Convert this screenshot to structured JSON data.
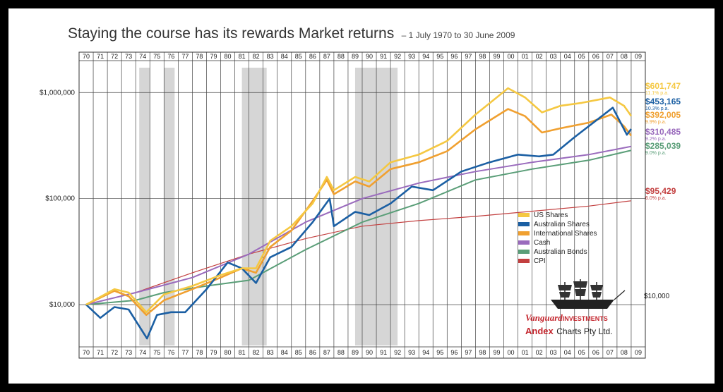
{
  "header": {
    "title": "Staying the course has its rewards Market returns",
    "subtitle": "– 1 July 1970 to 30 June 2009"
  },
  "chart_data": {
    "type": "line",
    "title": "Staying the course has its rewards Market returns",
    "subtitle": "– 1 July 1970 to 30 June 2009",
    "y_scale": "log",
    "ylim": [
      4000,
      2000000
    ],
    "y_ticks": [
      {
        "value": 10000,
        "label": "$10,000"
      },
      {
        "value": 100000,
        "label": "$100,000"
      },
      {
        "value": 1000000,
        "label": "$1,000,000"
      }
    ],
    "right_axis_label": "$10,000",
    "x_ticks": [
      "70",
      "71",
      "72",
      "73",
      "74",
      "75",
      "76",
      "77",
      "78",
      "79",
      "80",
      "81",
      "82",
      "83",
      "84",
      "85",
      "86",
      "87",
      "88",
      "89",
      "90",
      "91",
      "92",
      "93",
      "94",
      "95",
      "96",
      "97",
      "98",
      "99",
      "00",
      "01",
      "02",
      "03",
      "04",
      "05",
      "06",
      "07",
      "08",
      "09"
    ],
    "shaded_periods": [
      [
        1974.25,
        1975.0
      ],
      [
        1976.0,
        1976.75
      ],
      [
        1981.5,
        1983.25
      ],
      [
        1989.5,
        1992.5
      ]
    ],
    "grid": true,
    "legend_position": "bottom-right",
    "series": [
      {
        "name": "US Shares",
        "color": "#f5c842",
        "end_label": "$601,747",
        "return_label": "11.1% p.a.",
        "points": [
          [
            1970.5,
            10000
          ],
          [
            1972.5,
            14000
          ],
          [
            1973.5,
            13000
          ],
          [
            1974.75,
            8500
          ],
          [
            1976,
            12500
          ],
          [
            1978,
            15000
          ],
          [
            1980,
            19000
          ],
          [
            1981.5,
            22000
          ],
          [
            1982.5,
            22000
          ],
          [
            1983.5,
            40000
          ],
          [
            1985,
            55000
          ],
          [
            1986.5,
            90000
          ],
          [
            1987.5,
            160000
          ],
          [
            1988,
            120000
          ],
          [
            1989.5,
            160000
          ],
          [
            1990.5,
            145000
          ],
          [
            1992,
            220000
          ],
          [
            1994,
            260000
          ],
          [
            1996,
            350000
          ],
          [
            1998,
            620000
          ],
          [
            1999.5,
            900000
          ],
          [
            2000.3,
            1100000
          ],
          [
            2001.5,
            900000
          ],
          [
            2002.7,
            650000
          ],
          [
            2004,
            750000
          ],
          [
            2005.5,
            800000
          ],
          [
            2007.5,
            900000
          ],
          [
            2008.5,
            750000
          ],
          [
            2009,
            601747
          ]
        ]
      },
      {
        "name": "Australian Shares",
        "color": "#1b5fa3",
        "end_label": "$453,165",
        "return_label": "10.3% p.a.",
        "points": [
          [
            1970.5,
            10000
          ],
          [
            1971.5,
            7500
          ],
          [
            1972.5,
            9500
          ],
          [
            1973.5,
            9000
          ],
          [
            1974.8,
            4800
          ],
          [
            1975.5,
            8000
          ],
          [
            1976.5,
            8500
          ],
          [
            1977.5,
            8500
          ],
          [
            1979,
            14000
          ],
          [
            1980.5,
            25000
          ],
          [
            1981.5,
            22000
          ],
          [
            1982.5,
            16000
          ],
          [
            1983.5,
            28000
          ],
          [
            1985,
            35000
          ],
          [
            1986.5,
            60000
          ],
          [
            1987.7,
            100000
          ],
          [
            1988,
            55000
          ],
          [
            1989.5,
            75000
          ],
          [
            1990.5,
            70000
          ],
          [
            1992,
            90000
          ],
          [
            1993.5,
            130000
          ],
          [
            1995,
            120000
          ],
          [
            1997,
            180000
          ],
          [
            1999,
            220000
          ],
          [
            2001,
            260000
          ],
          [
            2002.5,
            250000
          ],
          [
            2003.5,
            260000
          ],
          [
            2005,
            380000
          ],
          [
            2007.7,
            720000
          ],
          [
            2008.7,
            400000
          ],
          [
            2009,
            453165
          ]
        ]
      },
      {
        "name": "International Shares",
        "color": "#f0a030",
        "end_label": "$392,005",
        "return_label": "9.9% p.a.",
        "points": [
          [
            1970.5,
            10000
          ],
          [
            1972.5,
            13500
          ],
          [
            1973.5,
            12000
          ],
          [
            1974.75,
            8000
          ],
          [
            1976,
            11000
          ],
          [
            1978,
            14000
          ],
          [
            1980,
            18000
          ],
          [
            1981.5,
            22000
          ],
          [
            1982.5,
            20000
          ],
          [
            1983.5,
            35000
          ],
          [
            1985,
            50000
          ],
          [
            1986.5,
            95000
          ],
          [
            1987.5,
            150000
          ],
          [
            1988,
            110000
          ],
          [
            1989.5,
            145000
          ],
          [
            1990.5,
            130000
          ],
          [
            1992,
            190000
          ],
          [
            1994,
            220000
          ],
          [
            1996,
            280000
          ],
          [
            1998,
            450000
          ],
          [
            2000.3,
            700000
          ],
          [
            2001.5,
            600000
          ],
          [
            2002.7,
            420000
          ],
          [
            2004,
            460000
          ],
          [
            2006,
            520000
          ],
          [
            2007.6,
            620000
          ],
          [
            2008.5,
            480000
          ],
          [
            2009,
            392005
          ]
        ]
      },
      {
        "name": "Cash",
        "color": "#9a6bbd",
        "end_label": "$310,485",
        "return_label": "9.2% p.a.",
        "points": [
          [
            1970.5,
            10000
          ],
          [
            1974,
            13000
          ],
          [
            1978,
            18000
          ],
          [
            1982,
            30000
          ],
          [
            1986,
            60000
          ],
          [
            1990,
            100000
          ],
          [
            1994,
            140000
          ],
          [
            1998,
            180000
          ],
          [
            2002,
            220000
          ],
          [
            2006,
            260000
          ],
          [
            2009,
            310485
          ]
        ]
      },
      {
        "name": "Australian Bonds",
        "color": "#5a9e78",
        "end_label": "$285,039",
        "return_label": "9.0% p.a.",
        "points": [
          [
            1970.5,
            10000
          ],
          [
            1974,
            11000
          ],
          [
            1976,
            13000
          ],
          [
            1979,
            15000
          ],
          [
            1982,
            17000
          ],
          [
            1986,
            33000
          ],
          [
            1990,
            60000
          ],
          [
            1994,
            90000
          ],
          [
            1998,
            150000
          ],
          [
            2002,
            190000
          ],
          [
            2006,
            230000
          ],
          [
            2009,
            285039
          ]
        ]
      },
      {
        "name": "CPI",
        "color": "#c34040",
        "end_label": "$95,429",
        "return_label": "6.0% p.a.",
        "points": [
          [
            1970.5,
            10000
          ],
          [
            1974,
            13000
          ],
          [
            1978,
            20000
          ],
          [
            1982,
            30000
          ],
          [
            1986,
            42000
          ],
          [
            1990,
            55000
          ],
          [
            1994,
            62000
          ],
          [
            1998,
            68000
          ],
          [
            2002,
            76000
          ],
          [
            2006,
            85000
          ],
          [
            2009,
            95429
          ]
        ]
      }
    ]
  },
  "legend": {
    "items": [
      {
        "label": "US Shares",
        "color": "#f5c842"
      },
      {
        "label": "Australian Shares",
        "color": "#1b5fa3"
      },
      {
        "label": "International Shares",
        "color": "#f0a030"
      },
      {
        "label": "Cash",
        "color": "#9a6bbd"
      },
      {
        "label": "Australian Bonds",
        "color": "#5a9e78"
      },
      {
        "label": "CPI",
        "color": "#c34040"
      }
    ]
  },
  "branding": {
    "vanguard_brand": "Vanguard",
    "vanguard_suffix": "INVESTMENTS",
    "andex_brand": "Andex",
    "andex_suffix": "Charts Pty Ltd."
  }
}
